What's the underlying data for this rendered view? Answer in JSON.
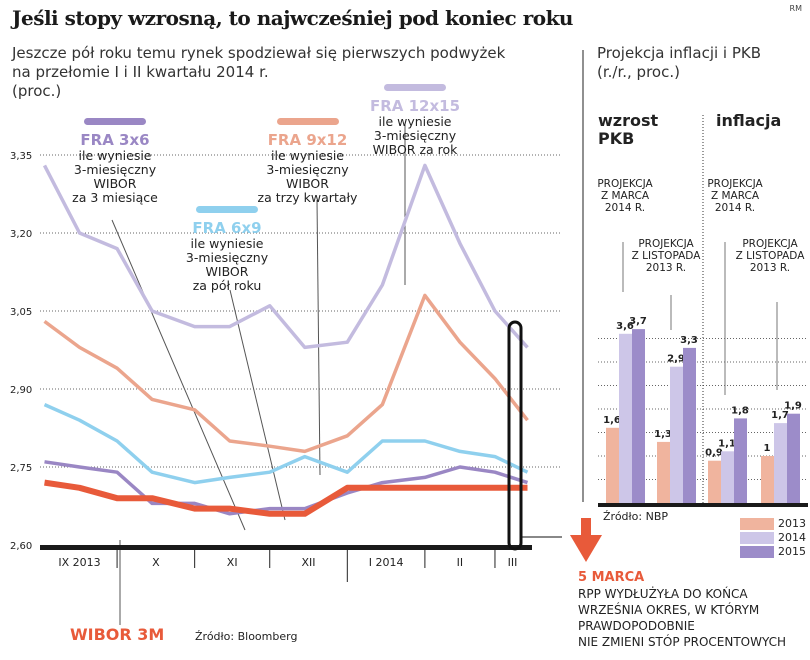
{
  "title": "Jeśli stopy wzrosną, to najwcześniej pod koniec roku",
  "credit": "RM",
  "subtitle": [
    "Jeszcze pół roku temu rynek spodziewał się pierwszych podwyżek",
    "na przełomie I i II kwartału 2014 r.",
    "(proc.)"
  ],
  "right_subtitle": [
    "Projekcja inflacji i PKB",
    "(r./r., proc.)"
  ],
  "colors": {
    "fra3x6": "#9a87c4",
    "fra6x9": "#8fd0ee",
    "fra9x12": "#eba58d",
    "fra12x15": "#c3bbdf",
    "wibor": "#e85a3a",
    "arrow": "#e85a3a"
  },
  "chart_data": [
    {
      "type": "line",
      "ylim": [
        2.6,
        3.35
      ],
      "yticks": [
        "3,35",
        "3,20",
        "3,05",
        "2,90",
        "2,75",
        "2,60"
      ],
      "ytick_values": [
        3.35,
        3.2,
        3.05,
        2.9,
        2.75,
        2.6
      ],
      "xticks": [
        "IX 2013",
        "X",
        "XI",
        "XII",
        "I 2014",
        "II",
        "III"
      ],
      "grid": true,
      "source": "Źródło: Bloomberg",
      "x": [
        "2013-09-02",
        "2013-09-16",
        "2013-10-01",
        "2013-10-15",
        "2013-11-01",
        "2013-11-15",
        "2013-12-01",
        "2013-12-15",
        "2014-01-01",
        "2014-01-15",
        "2014-02-01",
        "2014-02-15",
        "2014-03-01",
        "2014-03-14"
      ],
      "series": [
        {
          "name": "FRA 12x15",
          "desc": [
            "ile wyniesie",
            "3-miesięczny",
            "WIBOR za rok"
          ],
          "color": "#c3bbdf",
          "values": [
            3.33,
            3.2,
            3.17,
            3.05,
            3.02,
            3.02,
            3.06,
            2.98,
            2.99,
            3.1,
            3.33,
            3.18,
            3.05,
            2.98
          ]
        },
        {
          "name": "FRA 9x12",
          "desc": [
            "ile wyniesie",
            "3-miesięczny",
            "WIBOR",
            "za trzy kwartały"
          ],
          "color": "#eba58d",
          "values": [
            3.03,
            2.98,
            2.94,
            2.88,
            2.86,
            2.8,
            2.79,
            2.78,
            2.81,
            2.87,
            3.08,
            2.99,
            2.92,
            2.84
          ]
        },
        {
          "name": "FRA 6x9",
          "desc": [
            "ile wyniesie",
            "3-miesięczny",
            "WIBOR",
            "za pół roku"
          ],
          "color": "#8fd0ee",
          "values": [
            2.87,
            2.84,
            2.8,
            2.74,
            2.72,
            2.73,
            2.74,
            2.77,
            2.74,
            2.8,
            2.8,
            2.78,
            2.77,
            2.74
          ]
        },
        {
          "name": "FRA 3x6",
          "desc": [
            "ile wyniesie",
            "3-miesięczny",
            "WIBOR",
            "za 3 miesiące"
          ],
          "color": "#9a87c4",
          "values": [
            2.76,
            2.75,
            2.74,
            2.68,
            2.68,
            2.66,
            2.67,
            2.67,
            2.7,
            2.72,
            2.73,
            2.75,
            2.74,
            2.72
          ]
        },
        {
          "name": "WIBOR 3M",
          "color": "#e85a3a",
          "values": [
            2.72,
            2.71,
            2.69,
            2.69,
            2.67,
            2.67,
            2.66,
            2.66,
            2.71,
            2.71,
            2.71,
            2.71,
            2.71,
            2.71
          ]
        }
      ],
      "annotation": {
        "date": "5 MARCA",
        "text": [
          "RPP WYDŁUŻYŁA DO KOŃCA",
          "WRZEŚNIA OKRES, W KTÓRYM",
          "PRAWDOPODOBNIE",
          "NIE ZMIENI STÓP PROCENTOWYCH"
        ]
      }
    },
    {
      "type": "bar",
      "groups": [
        "wzrost PKB",
        "inflacja"
      ],
      "group_labels": [
        "wzrost",
        "PKB",
        "inflacja"
      ],
      "projections": [
        "PROJEKCJA Z MARCA 2014 R.",
        "PROJEKCJA Z LISTOPADA 2013 R."
      ],
      "proj_lines": [
        [
          "PROJEKCJA",
          "Z MARCA",
          "2014 R."
        ],
        [
          "PROJEKCJA",
          "Z LISTOPADA",
          "2013 R."
        ]
      ],
      "legend": [
        "2013",
        "2014",
        "2015"
      ],
      "legend_colors": [
        "#f0b49e",
        "#cdc6e8",
        "#9c8cc9"
      ],
      "values": [
        [
          1.6,
          3.6,
          3.7
        ],
        [
          1.3,
          2.9,
          3.3
        ],
        [
          0.9,
          1.1,
          1.8
        ],
        [
          1,
          1.7,
          1.9
        ]
      ],
      "labels": [
        [
          "1,6",
          "3,6",
          "3,7"
        ],
        [
          "1,3",
          "2,9",
          "3,3"
        ],
        [
          "0,9",
          "1,1",
          "1,8"
        ],
        [
          "1",
          "1,7",
          "1,9"
        ]
      ],
      "source": "Źródło: NBP"
    }
  ]
}
